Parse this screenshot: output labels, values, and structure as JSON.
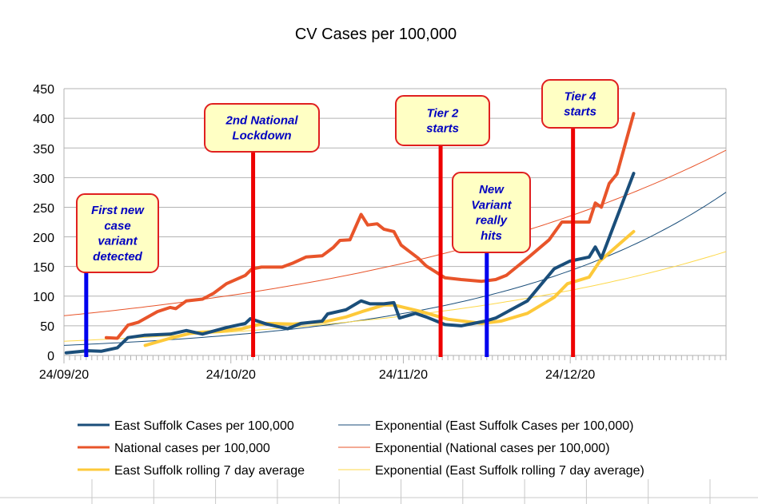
{
  "chart_data": {
    "type": "line",
    "title": "CV Cases per 100,000",
    "xlabel": "",
    "ylabel": "",
    "x_unit": "days since 24/09/20",
    "xlim": [
      0,
      119
    ],
    "ylim": [
      0,
      450
    ],
    "y_ticks": [
      "0",
      "50",
      "100",
      "150",
      "200",
      "250",
      "300",
      "350",
      "400",
      "450"
    ],
    "x_ticks": [
      {
        "day": 0,
        "label": "24/09/20"
      },
      {
        "day": 30,
        "label": "24/10/20"
      },
      {
        "day": 61,
        "label": "24/11/20"
      },
      {
        "day": 91,
        "label": "24/12/20"
      }
    ],
    "grid": true,
    "legend_position": "bottom",
    "series": [
      {
        "name": "East Suffolk Cases per 100,000",
        "color": "#1a4e7a",
        "points": [
          [
            0.4,
            4.5
          ],
          [
            4.3,
            8
          ],
          [
            6.7,
            7
          ],
          [
            9.6,
            13
          ],
          [
            11.5,
            30
          ],
          [
            14.4,
            34
          ],
          [
            19.1,
            36
          ],
          [
            22,
            42
          ],
          [
            24.9,
            36
          ],
          [
            29.2,
            47
          ],
          [
            32.6,
            54
          ],
          [
            33.5,
            62
          ],
          [
            36.4,
            53
          ],
          [
            40.2,
            45
          ],
          [
            42.6,
            54
          ],
          [
            46.4,
            58
          ],
          [
            47.4,
            70
          ],
          [
            50.7,
            77
          ],
          [
            53.4,
            92
          ],
          [
            55,
            87
          ],
          [
            57.5,
            87
          ],
          [
            59.3,
            89
          ],
          [
            60.3,
            63
          ],
          [
            63.2,
            71
          ],
          [
            65.1,
            65
          ],
          [
            68.5,
            52
          ],
          [
            71.4,
            50
          ],
          [
            75.7,
            58
          ],
          [
            77.6,
            63
          ],
          [
            83.3,
            92
          ],
          [
            88.1,
            146
          ],
          [
            90.9,
            159
          ],
          [
            94.4,
            166
          ],
          [
            95.5,
            183
          ],
          [
            96.6,
            164
          ],
          [
            102.4,
            307
          ]
        ]
      },
      {
        "name": "National cases per 100,000",
        "color": "#e8542a",
        "points": [
          [
            7.6,
            30
          ],
          [
            9.6,
            29
          ],
          [
            11.5,
            51
          ],
          [
            13.4,
            56
          ],
          [
            16.8,
            74
          ],
          [
            19.1,
            81
          ],
          [
            20.1,
            79
          ],
          [
            22,
            92
          ],
          [
            24.9,
            95
          ],
          [
            26.9,
            105
          ],
          [
            29.2,
            121
          ],
          [
            32.6,
            135
          ],
          [
            33.8,
            146
          ],
          [
            35.5,
            149
          ],
          [
            39.2,
            149
          ],
          [
            41.2,
            156
          ],
          [
            43.5,
            166
          ],
          [
            46.4,
            168
          ],
          [
            48.4,
            182
          ],
          [
            49.6,
            194
          ],
          [
            51.4,
            195
          ],
          [
            53.4,
            238
          ],
          [
            54.6,
            220
          ],
          [
            56.3,
            222
          ],
          [
            57.5,
            213
          ],
          [
            59.3,
            209
          ],
          [
            60.6,
            186
          ],
          [
            63.7,
            164
          ],
          [
            65.1,
            151
          ],
          [
            68.5,
            131
          ],
          [
            71.4,
            128
          ],
          [
            75.1,
            125
          ],
          [
            77.6,
            128
          ],
          [
            79.5,
            135
          ],
          [
            83.3,
            164
          ],
          [
            87.2,
            195
          ],
          [
            89.5,
            225
          ],
          [
            94.4,
            225
          ],
          [
            95.5,
            257
          ],
          [
            96.6,
            250
          ],
          [
            98,
            290
          ],
          [
            99.4,
            306
          ],
          [
            102.4,
            408
          ]
        ]
      },
      {
        "name": "East Suffolk rolling 7 day average",
        "color": "#fdc93a",
        "points": [
          [
            14.6,
            17
          ],
          [
            19.1,
            29
          ],
          [
            23,
            38
          ],
          [
            27.8,
            41
          ],
          [
            32,
            45
          ],
          [
            34.5,
            51
          ],
          [
            36.4,
            54
          ],
          [
            41.2,
            53
          ],
          [
            47,
            57
          ],
          [
            50.7,
            65
          ],
          [
            53.6,
            74
          ],
          [
            57.5,
            85
          ],
          [
            59.3,
            85
          ],
          [
            64.2,
            74
          ],
          [
            69,
            61
          ],
          [
            75.1,
            54
          ],
          [
            78.6,
            58
          ],
          [
            83.3,
            71
          ],
          [
            88.1,
            98
          ],
          [
            90.5,
            121
          ],
          [
            94.4,
            132
          ],
          [
            96.3,
            159
          ],
          [
            99.6,
            186
          ],
          [
            102.4,
            209
          ]
        ]
      }
    ],
    "trendlines": [
      {
        "name": "Exponential (East Suffolk Cases per 100,000)",
        "color": "#1a4e7a",
        "type": "exponential",
        "a": 17,
        "b": 0.0234
      },
      {
        "name": "Exponential (National cases per 100,000)",
        "color": "#e8542a",
        "type": "exponential",
        "a": 67,
        "b": 0.0138
      },
      {
        "name": "Exponential (East Suffolk rolling 7 day average)",
        "color": "#fdd84a",
        "type": "exponential",
        "a": 24,
        "b": 0.0167
      }
    ],
    "annotations": [
      {
        "lines": [
          "First new",
          "case",
          "variant",
          "detected"
        ],
        "day": 4,
        "line_color": "#0000ee"
      },
      {
        "lines": [
          "2nd National",
          "Lockdown"
        ],
        "day": 34,
        "line_color": "#ee0000"
      },
      {
        "lines": [
          "Tier 2",
          "starts"
        ],
        "day": 67.7,
        "line_color": "#ee0000"
      },
      {
        "lines": [
          "New",
          "Variant",
          "really",
          "hits"
        ],
        "day": 76,
        "line_color": "#0000ee"
      },
      {
        "lines": [
          "Tier 4",
          "starts"
        ],
        "day": 91.5,
        "line_color": "#ee0000"
      }
    ]
  }
}
